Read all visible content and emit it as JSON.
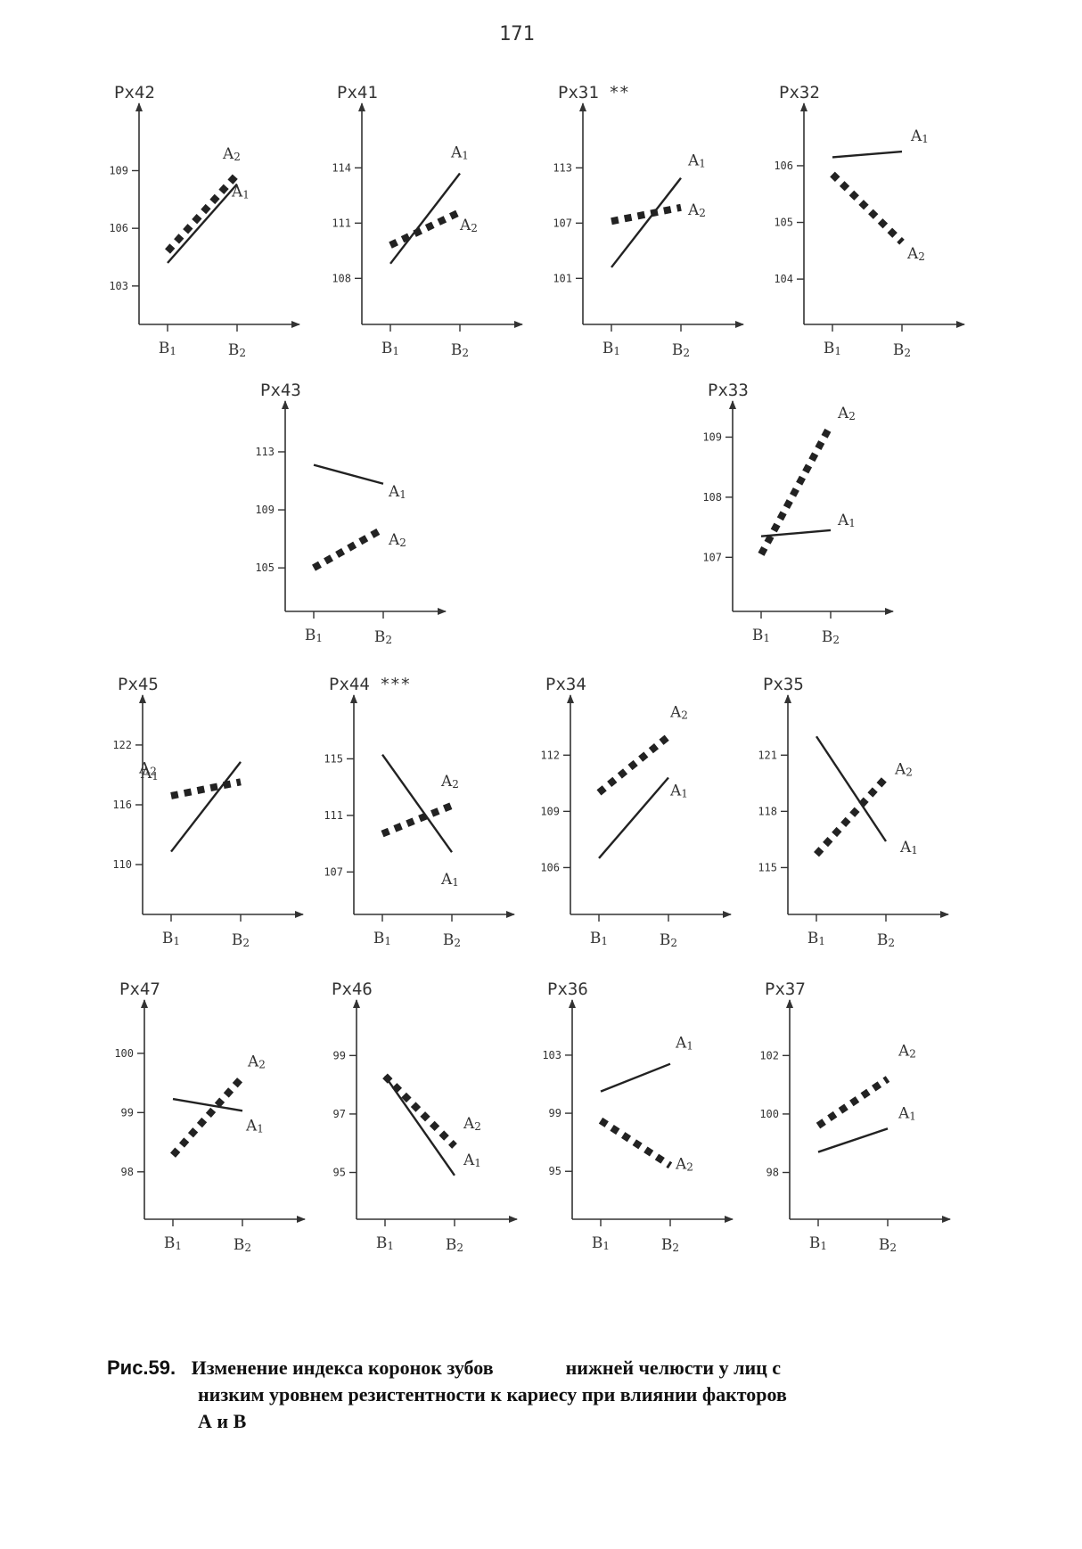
{
  "page_number": "171",
  "caption": {
    "label": "Рис.59.",
    "line1a": "Изменение индекса коронок зубов",
    "line1b": "нижней челюсти у лиц с",
    "line2": "низким уровнем резистентности к кариесу при влиянии факторов",
    "line3": "А и В"
  },
  "colors": {
    "line": "#222222",
    "axis": "#333333",
    "background": "#ffffff"
  },
  "chart_data": [
    {
      "type": "line",
      "title": "Px42",
      "categories": [
        "B1",
        "B2"
      ],
      "yticks": [
        103,
        106,
        109
      ],
      "ylim": [
        101,
        112.5
      ],
      "series": [
        {
          "name": "A2",
          "style": "dotted",
          "values": [
            104.8,
            108.8
          ]
        },
        {
          "name": "A1",
          "style": "solid",
          "values": [
            104.2,
            108.3
          ]
        }
      ]
    },
    {
      "type": "line",
      "title": "Px41",
      "categories": [
        "B1",
        "B2"
      ],
      "yticks": [
        108,
        111,
        114
      ],
      "ylim": [
        105.5,
        117.5
      ],
      "series": [
        {
          "name": "A1",
          "style": "solid",
          "values": [
            108.8,
            113.7
          ]
        },
        {
          "name": "A2",
          "style": "dotted",
          "values": [
            109.8,
            111.6
          ]
        }
      ]
    },
    {
      "type": "line",
      "title": "Px31 **",
      "categories": [
        "B1",
        "B2"
      ],
      "yticks": [
        101,
        107,
        113
      ],
      "ylim": [
        96,
        120
      ],
      "series": [
        {
          "name": "A1",
          "style": "solid",
          "values": [
            102.2,
            111.9
          ]
        },
        {
          "name": "A2",
          "style": "dotted",
          "values": [
            107.2,
            108.7
          ]
        }
      ]
    },
    {
      "type": "line",
      "title": "Px32",
      "categories": [
        "B1",
        "B2"
      ],
      "yticks": [
        104,
        105,
        106
      ],
      "ylim": [
        103.2,
        107.1
      ],
      "series": [
        {
          "name": "A1",
          "style": "solid",
          "values": [
            106.15,
            106.25
          ]
        },
        {
          "name": "A2",
          "style": "dotted",
          "values": [
            105.85,
            104.65
          ]
        }
      ]
    },
    {
      "type": "line",
      "title": "Px43",
      "categories": [
        "B1",
        "B2"
      ],
      "yticks": [
        105,
        109,
        113
      ],
      "ylim": [
        102,
        116.5
      ],
      "series": [
        {
          "name": "A1",
          "style": "solid",
          "values": [
            112.1,
            110.8
          ]
        },
        {
          "name": "A2",
          "style": "dotted",
          "values": [
            105.0,
            107.7
          ]
        }
      ]
    },
    {
      "type": "line",
      "title": "Px33",
      "categories": [
        "B1",
        "B2"
      ],
      "yticks": [
        107,
        108,
        109
      ],
      "ylim": [
        106.1,
        109.6
      ],
      "series": [
        {
          "name": "A1",
          "style": "solid",
          "values": [
            107.35,
            107.45
          ]
        },
        {
          "name": "A2",
          "style": "dotted",
          "values": [
            107.05,
            109.2
          ]
        }
      ]
    },
    {
      "type": "line",
      "title": "Px45",
      "categories": [
        "B1",
        "B2"
      ],
      "yticks": [
        110,
        116,
        122
      ],
      "ylim": [
        105,
        127
      ],
      "series": [
        {
          "name": "A1",
          "style": "solid",
          "values": [
            111.3,
            120.3
          ]
        },
        {
          "name": "A2",
          "style": "dotted",
          "values": [
            116.9,
            118.3
          ]
        }
      ]
    },
    {
      "type": "line",
      "title": "Px44 ***",
      "categories": [
        "B1",
        "B2"
      ],
      "yticks": [
        107,
        111,
        115
      ],
      "ylim": [
        104,
        119.5
      ],
      "series": [
        {
          "name": "A1",
          "style": "solid",
          "values": [
            115.3,
            108.4
          ]
        },
        {
          "name": "A2",
          "style": "dotted",
          "values": [
            109.7,
            111.7
          ]
        }
      ]
    },
    {
      "type": "line",
      "title": "Px34",
      "categories": [
        "B1",
        "B2"
      ],
      "yticks": [
        106,
        109,
        112
      ],
      "ylim": [
        103.5,
        115.2
      ],
      "series": [
        {
          "name": "A1",
          "style": "solid",
          "values": [
            106.5,
            110.8
          ]
        },
        {
          "name": "A2",
          "style": "dotted",
          "values": [
            110.0,
            113.0
          ]
        }
      ]
    },
    {
      "type": "line",
      "title": "Px35",
      "categories": [
        "B1",
        "B2"
      ],
      "yticks": [
        115,
        118,
        121
      ],
      "ylim": [
        112.5,
        124.2
      ],
      "series": [
        {
          "name": "A1",
          "style": "solid",
          "values": [
            122.0,
            116.4
          ]
        },
        {
          "name": "A2",
          "style": "dotted",
          "values": [
            115.7,
            119.8
          ]
        }
      ]
    },
    {
      "type": "line",
      "title": "Px47",
      "categories": [
        "B1",
        "B2"
      ],
      "yticks": [
        98,
        99,
        100
      ],
      "ylim": [
        97.2,
        100.9
      ],
      "series": [
        {
          "name": "A1",
          "style": "solid",
          "values": [
            99.23,
            99.03
          ]
        },
        {
          "name": "A2",
          "style": "dotted",
          "values": [
            98.28,
            99.6
          ]
        }
      ]
    },
    {
      "type": "line",
      "title": "Px46",
      "categories": [
        "B1",
        "B2"
      ],
      "yticks": [
        95,
        97,
        99
      ],
      "ylim": [
        93.4,
        100.9
      ],
      "series": [
        {
          "name": "A1",
          "style": "solid",
          "values": [
            98.3,
            94.9
          ]
        },
        {
          "name": "A2",
          "style": "dotted",
          "values": [
            98.3,
            95.9
          ]
        }
      ]
    },
    {
      "type": "line",
      "title": "Px36",
      "categories": [
        "B1",
        "B2"
      ],
      "yticks": [
        95,
        99,
        103
      ],
      "ylim": [
        91.7,
        106.8
      ],
      "series": [
        {
          "name": "A1",
          "style": "solid",
          "values": [
            100.5,
            102.4
          ]
        },
        {
          "name": "A2",
          "style": "dotted",
          "values": [
            98.5,
            95.4
          ]
        }
      ]
    },
    {
      "type": "line",
      "title": "Px37",
      "categories": [
        "B1",
        "B2"
      ],
      "yticks": [
        98,
        100,
        102
      ],
      "ylim": [
        96.4,
        103.9
      ],
      "series": [
        {
          "name": "A1",
          "style": "solid",
          "values": [
            98.7,
            99.5
          ]
        },
        {
          "name": "A2",
          "style": "dotted",
          "values": [
            99.6,
            101.2
          ]
        }
      ]
    }
  ]
}
